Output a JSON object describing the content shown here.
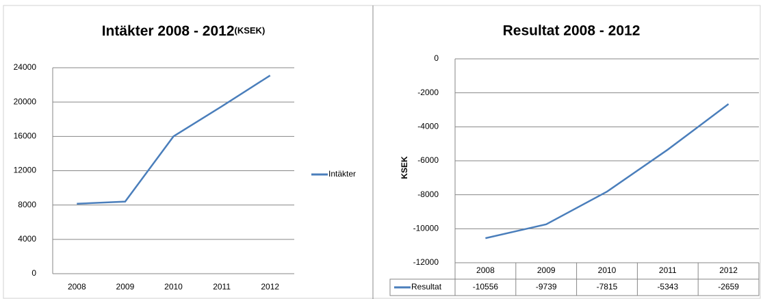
{
  "chart_data": [
    {
      "type": "line",
      "title": "Intäkter 2008 - 2012",
      "title_unit": "(KSEK)",
      "categories": [
        "2008",
        "2009",
        "2010",
        "2011",
        "2012"
      ],
      "series": [
        {
          "name": "Intäkter",
          "color": "#4a7ebb",
          "values": [
            8150,
            8400,
            16000,
            19500,
            23100
          ]
        }
      ],
      "ylim": [
        0,
        24000
      ],
      "yticks": [
        0,
        4000,
        8000,
        12000,
        16000,
        20000,
        24000
      ],
      "grid": true,
      "legend": "right"
    },
    {
      "type": "line",
      "title": "Resultat 2008 - 2012",
      "y_label": "KSEK",
      "categories": [
        "2008",
        "2009",
        "2010",
        "2011",
        "2012"
      ],
      "series": [
        {
          "name": "Resultat",
          "color": "#4a7ebb",
          "values": [
            -10556,
            -9739,
            -7815,
            -5343,
            -2659
          ]
        }
      ],
      "ylim": [
        -12000,
        0
      ],
      "yticks": [
        -12000,
        -10000,
        -8000,
        -6000,
        -4000,
        -2000,
        0
      ],
      "grid": true,
      "legend": "table"
    }
  ]
}
